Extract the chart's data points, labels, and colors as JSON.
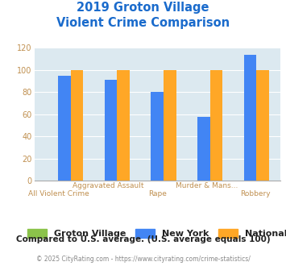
{
  "title_line1": "2019 Groton Village",
  "title_line2": "Violent Crime Comparison",
  "top_labels": [
    "",
    "Aggravated Assault",
    "",
    "Murder & Mans...",
    ""
  ],
  "bot_labels": [
    "All Violent Crime",
    "",
    "Rape",
    "",
    "Robbery"
  ],
  "groton_village": [
    0,
    0,
    0,
    0,
    0
  ],
  "new_york": [
    95,
    91,
    80,
    58,
    114
  ],
  "national": [
    100,
    100,
    100,
    100,
    100
  ],
  "color_groton": "#8bc34a",
  "color_ny": "#4285f4",
  "color_national": "#ffa726",
  "ylim": [
    0,
    120
  ],
  "yticks": [
    0,
    20,
    40,
    60,
    80,
    100,
    120
  ],
  "bg_color": "#dce9f0",
  "title_color": "#1a6bcc",
  "tick_color": "#c09050",
  "footer_text": "Compared to U.S. average. (U.S. average equals 100)",
  "copyright_text": "© 2025 CityRating.com - https://www.cityrating.com/crime-statistics/",
  "footer_color": "#222222",
  "copyright_color": "#888888",
  "legend_labels": [
    "Groton Village",
    "New York",
    "National"
  ]
}
